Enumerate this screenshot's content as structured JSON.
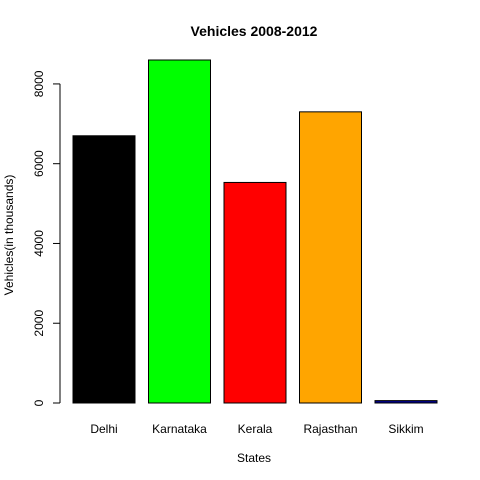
{
  "chart_data": {
    "type": "bar",
    "title": "Vehicles 2008-2012",
    "xlabel": "States",
    "ylabel": "Vehicles(in thousands)",
    "categories": [
      "Delhi",
      "Karnataka",
      "Kerala",
      "Rajasthan",
      "Sikkim"
    ],
    "values": [
      6700,
      8600,
      5530,
      7300,
      60
    ],
    "colors": [
      "#000000",
      "#00ff00",
      "#ff0000",
      "#ffa500",
      "#00008b"
    ],
    "yticks": [
      0,
      2000,
      4000,
      6000,
      8000
    ],
    "ylim": [
      0,
      8600
    ],
    "grid": false
  }
}
